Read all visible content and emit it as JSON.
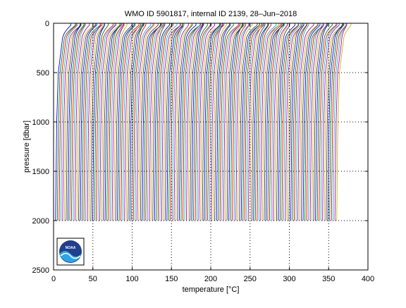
{
  "chart_data": {
    "type": "line",
    "title": "WMO ID 5901817, internal ID 2139, 28–Jun–2018",
    "xlabel_prefix": "temperature [",
    "xlabel_unit": "°C",
    "xlabel_suffix": "]",
    "ylabel": "pressure [dbar]",
    "xlim": [
      0,
      400
    ],
    "ylim": [
      0,
      2500
    ],
    "y_reversed": true,
    "xticks": [
      0,
      50,
      100,
      150,
      200,
      250,
      300,
      350,
      400
    ],
    "yticks": [
      0,
      500,
      1000,
      1500,
      2000,
      2500
    ],
    "grid": "dotted",
    "profile_count": 160,
    "profile_offset_step": 2.25,
    "profile_max_pressure": 2000,
    "series_colors": [
      "#0000ff",
      "#008000",
      "#ff0000",
      "#00bfbf",
      "#bf00bf",
      "#bfbf00",
      "#404040"
    ],
    "logo": {
      "icon": "noaa-logo",
      "text": "NOAA"
    }
  }
}
